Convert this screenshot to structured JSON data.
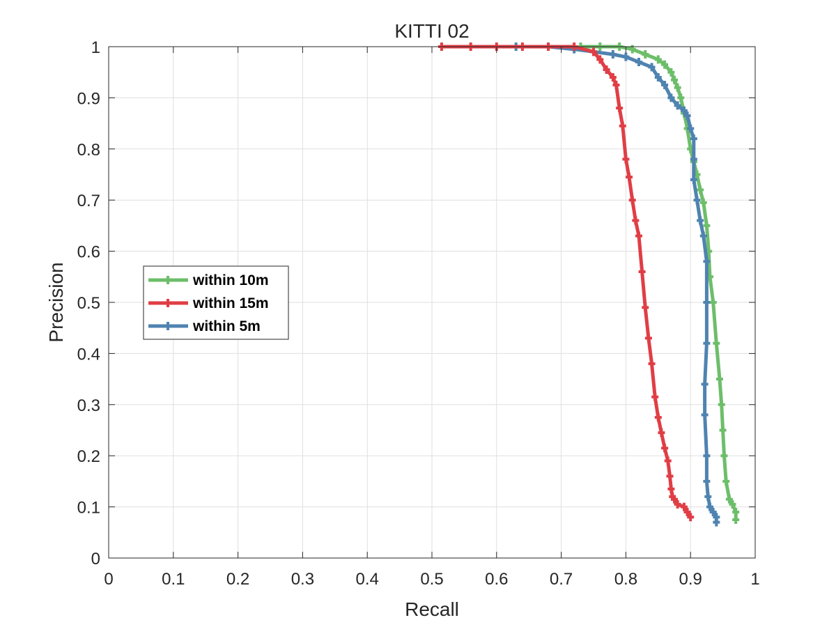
{
  "chart_data": {
    "type": "line",
    "title": "KITTI 02",
    "xlabel": "Recall",
    "ylabel": "Precision",
    "xlim": [
      0,
      1
    ],
    "ylim": [
      0,
      1
    ],
    "x_ticks": [
      "0",
      "0.1",
      "0.2",
      "0.3",
      "0.4",
      "0.5",
      "0.6",
      "0.7",
      "0.8",
      "0.9",
      "1"
    ],
    "y_ticks": [
      "0",
      "0.1",
      "0.2",
      "0.3",
      "0.4",
      "0.5",
      "0.6",
      "0.7",
      "0.8",
      "0.9",
      "1"
    ],
    "grid": true,
    "legend_position": "center-left",
    "series": [
      {
        "name": "within 10m",
        "color": "#6dbe6a",
        "x": [
          0.73,
          0.76,
          0.79,
          0.81,
          0.83,
          0.85,
          0.86,
          0.87,
          0.875,
          0.88,
          0.885,
          0.89,
          0.895,
          0.9,
          0.905,
          0.91,
          0.915,
          0.92,
          0.925,
          0.928,
          0.93,
          0.935,
          0.94,
          0.945,
          0.948,
          0.95,
          0.952,
          0.955,
          0.96,
          0.965,
          0.97,
          0.97
        ],
        "y": [
          1.0,
          1.0,
          1.0,
          0.995,
          0.985,
          0.975,
          0.965,
          0.95,
          0.935,
          0.92,
          0.9,
          0.87,
          0.84,
          0.8,
          0.775,
          0.75,
          0.72,
          0.695,
          0.65,
          0.6,
          0.55,
          0.5,
          0.42,
          0.35,
          0.3,
          0.25,
          0.2,
          0.15,
          0.115,
          0.105,
          0.09,
          0.075
        ]
      },
      {
        "name": "within 15m",
        "color": "#e03e45",
        "x": [
          0.515,
          0.56,
          0.6,
          0.64,
          0.68,
          0.72,
          0.75,
          0.76,
          0.77,
          0.78,
          0.785,
          0.79,
          0.795,
          0.8,
          0.805,
          0.81,
          0.815,
          0.82,
          0.825,
          0.83,
          0.835,
          0.84,
          0.845,
          0.85,
          0.855,
          0.86,
          0.865,
          0.868,
          0.87,
          0.872,
          0.875,
          0.88,
          0.89,
          0.895,
          0.9
        ],
        "y": [
          1.0,
          1.0,
          1.0,
          1.0,
          1.0,
          1.0,
          0.99,
          0.975,
          0.955,
          0.94,
          0.925,
          0.88,
          0.845,
          0.78,
          0.745,
          0.7,
          0.66,
          0.63,
          0.56,
          0.49,
          0.43,
          0.38,
          0.315,
          0.275,
          0.245,
          0.215,
          0.19,
          0.16,
          0.135,
          0.12,
          0.115,
          0.105,
          0.1,
          0.09,
          0.08
        ]
      },
      {
        "name": "within 5m",
        "color": "#4f83b0",
        "x": [
          0.63,
          0.68,
          0.72,
          0.75,
          0.78,
          0.8,
          0.82,
          0.84,
          0.85,
          0.86,
          0.87,
          0.88,
          0.89,
          0.895,
          0.9,
          0.905,
          0.905,
          0.905,
          0.91,
          0.915,
          0.92,
          0.925,
          0.925,
          0.925,
          0.922,
          0.922,
          0.925,
          0.925,
          0.927,
          0.93,
          0.935,
          0.94,
          0.94
        ],
        "y": [
          1.0,
          1.0,
          0.995,
          0.99,
          0.985,
          0.98,
          0.97,
          0.96,
          0.94,
          0.925,
          0.9,
          0.885,
          0.875,
          0.865,
          0.84,
          0.82,
          0.78,
          0.74,
          0.7,
          0.66,
          0.63,
          0.58,
          0.5,
          0.42,
          0.34,
          0.28,
          0.2,
          0.15,
          0.12,
          0.1,
          0.09,
          0.08,
          0.07
        ]
      }
    ]
  }
}
